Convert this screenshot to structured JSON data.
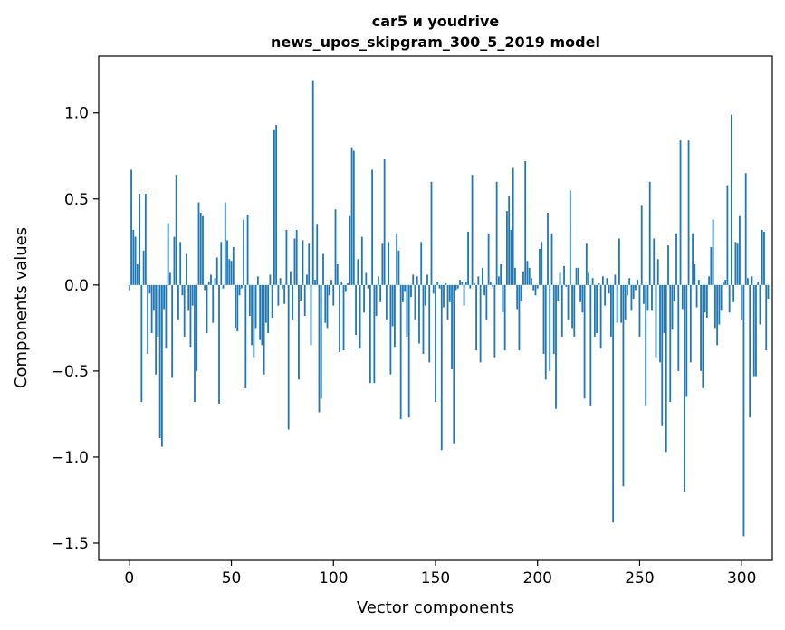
{
  "chart_data": {
    "type": "bar",
    "title": "car5 и youdrive\nnews_upos_skipgram_300_5_2019 model",
    "title_lines": [
      "car5 и youdrive",
      "news_upos_skipgram_300_5_2019 model"
    ],
    "xlabel": "Vector components",
    "ylabel": "Components values",
    "xlim": [
      -15,
      315
    ],
    "ylim": [
      -1.6,
      1.33
    ],
    "x_ticks": [
      0,
      50,
      100,
      150,
      200,
      250,
      300
    ],
    "x_tick_labels": [
      "0",
      "50",
      "100",
      "150",
      "200",
      "250",
      "300"
    ],
    "y_ticks": [
      -1.5,
      -1.0,
      -0.5,
      0.0,
      0.5,
      1.0
    ],
    "y_tick_labels": [
      "−1.5",
      "−1.0",
      "−0.5",
      "0.0",
      "0.5",
      "1.0"
    ],
    "bar_color": "#1f77b4",
    "grid": false,
    "values": [
      -0.03,
      0.67,
      0.32,
      0.28,
      0.12,
      0.53,
      -0.68,
      0.2,
      0.53,
      -0.4,
      -0.05,
      -0.28,
      -0.15,
      -0.52,
      -0.3,
      -0.89,
      -0.94,
      -0.14,
      -0.37,
      0.36,
      0.07,
      -0.54,
      0.28,
      0.64,
      -0.2,
      0.25,
      -0.06,
      -0.3,
      0.18,
      -0.15,
      -0.36,
      -0.12,
      -0.68,
      -0.5,
      0.48,
      0.42,
      0.4,
      -0.03,
      -0.28,
      0.02,
      0.06,
      -0.22,
      0.04,
      0.16,
      -0.69,
      0.25,
      -0.02,
      0.48,
      0.26,
      0.15,
      0.14,
      0.22,
      -0.25,
      -0.27,
      -0.06,
      -0.02,
      0.38,
      -0.6,
      0.41,
      -0.18,
      -0.35,
      -0.42,
      -0.25,
      0.05,
      -0.32,
      -0.35,
      -0.52,
      -0.22,
      -0.28,
      0.06,
      -0.19,
      0.9,
      0.93,
      -0.12,
      0.04,
      -0.02,
      -0.11,
      0.32,
      -0.84,
      0.08,
      -0.2,
      0.27,
      0.32,
      -0.55,
      -0.09,
      0.26,
      -0.18,
      0.06,
      0.24,
      -0.35,
      1.19,
      0.03,
      0.35,
      -0.74,
      -0.66,
      0.18,
      -0.22,
      -0.25,
      -0.06,
      0.03,
      -0.12,
      0.44,
      0.12,
      -0.39,
      0.02,
      -0.38,
      -0.04,
      0.01,
      0.4,
      0.8,
      0.78,
      -0.29,
      0.15,
      -0.37,
      0.28,
      -0.16,
      0.07,
      -0.02,
      -0.57,
      0.67,
      -0.57,
      -0.18,
      0.05,
      -0.1,
      0.24,
      0.73,
      -0.2,
      0.25,
      -0.52,
      -0.24,
      -0.36,
      0.3,
      0.2,
      -0.78,
      -0.1,
      -0.04,
      -0.3,
      -0.77,
      -0.07,
      0.06,
      -0.2,
      0.05,
      -0.34,
      0.25,
      -0.4,
      -0.12,
      0.06,
      -0.45,
      0.6,
      -0.05,
      -0.68,
      0.02,
      -0.02,
      -0.96,
      -0.13,
      0.01,
      -0.2,
      -0.1,
      -0.49,
      -0.92,
      -0.03,
      -0.02,
      0.03,
      0.02,
      -0.12,
      0.02,
      0.31,
      -0.02,
      0.64,
      0.01,
      -0.38,
      0.05,
      -0.45,
      0.1,
      -0.06,
      -0.2,
      0.3,
      0.02,
      -0.01,
      -0.42,
      0.6,
      0.05,
      0.12,
      -0.16,
      -0.38,
      0.43,
      0.52,
      0.32,
      0.68,
      0.1,
      -0.14,
      -0.38,
      -0.09,
      0.08,
      0.72,
      0.14,
      0.1,
      0.04,
      -0.03,
      -0.06,
      -0.02,
      0.21,
      0.25,
      -0.4,
      -0.55,
      0.42,
      -0.5,
      0.3,
      -0.4,
      -0.72,
      -0.09,
      0.07,
      -0.3,
      0.11,
      -0.01,
      -0.2,
      0.55,
      -0.25,
      -0.3,
      0.1,
      0.1,
      -0.1,
      -0.16,
      -0.66,
      0.24,
      0.07,
      -0.7,
      0.04,
      -0.3,
      -0.28,
      0.01,
      -0.37,
      0.05,
      -0.12,
      0.04,
      -0.05,
      -0.3,
      -1.38,
      0.06,
      -0.22,
      0.27,
      -0.22,
      -1.17,
      -0.2,
      -0.06,
      0.04,
      -0.15,
      -0.08,
      -0.03,
      0.03,
      -0.3,
      0.46,
      -0.11,
      -0.7,
      -0.15,
      0.6,
      -0.15,
      0.27,
      -0.42,
      0.15,
      -0.45,
      -0.82,
      -0.28,
      -0.97,
      0.23,
      -0.68,
      -0.26,
      -0.09,
      0.3,
      -0.5,
      0.84,
      -0.14,
      -1.2,
      -0.65,
      0.84,
      -0.45,
      0.3,
      0.12,
      -0.13,
      0.03,
      -0.5,
      -0.6,
      -0.16,
      -0.19,
      0.05,
      0.22,
      0.38,
      -0.25,
      -0.35,
      -0.23,
      -0.15,
      0.02,
      0.03,
      0.58,
      -0.16,
      0.99,
      -0.1,
      0.25,
      0.24,
      0.4,
      -0.2,
      -1.46,
      0.65,
      0.04,
      -0.77,
      0.05,
      -0.53,
      -0.53,
      0.02,
      -0.23,
      0.32,
      0.31,
      -0.38,
      -0.08
    ]
  }
}
